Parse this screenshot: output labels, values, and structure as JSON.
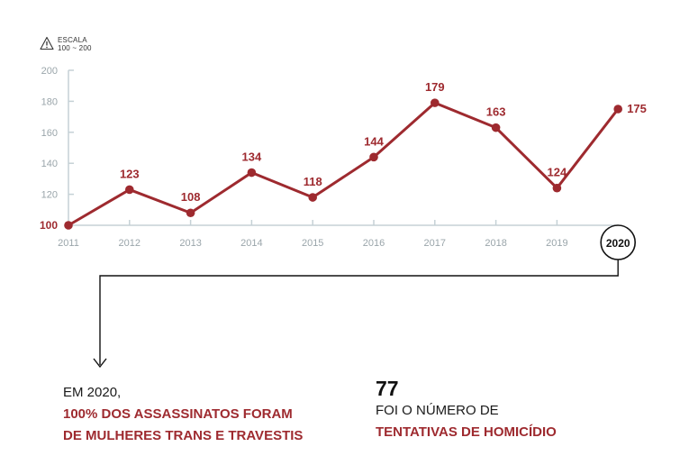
{
  "scale_note": {
    "label": "ESCALA",
    "range": "100 ~ 200",
    "icon": "warning-icon"
  },
  "colors": {
    "accent": "#9e2a2f",
    "axis": "#c5d1d6",
    "tick_text": "#9aa5aa"
  },
  "chart_data": {
    "type": "line",
    "x": [
      "2011",
      "2012",
      "2013",
      "2014",
      "2015",
      "2016",
      "2017",
      "2018",
      "2019",
      "2020"
    ],
    "series": [
      {
        "values": [
          100,
          123,
          108,
          134,
          118,
          144,
          179,
          163,
          124,
          175
        ]
      }
    ],
    "ylim": [
      100,
      200
    ],
    "yticks": [
      100,
      120,
      140,
      160,
      180,
      200
    ],
    "highlight": "2020",
    "grid": false
  },
  "left_block": {
    "line1": "EM 2020,",
    "line2": "100% DOS ASSASSINATOS FORAM",
    "line3": "DE MULHERES TRANS E TRAVESTIS"
  },
  "right_block": {
    "number": "77",
    "line1": "FOI O NÚMERO DE",
    "line2": "TENTATIVAS DE HOMICÍDIO"
  }
}
